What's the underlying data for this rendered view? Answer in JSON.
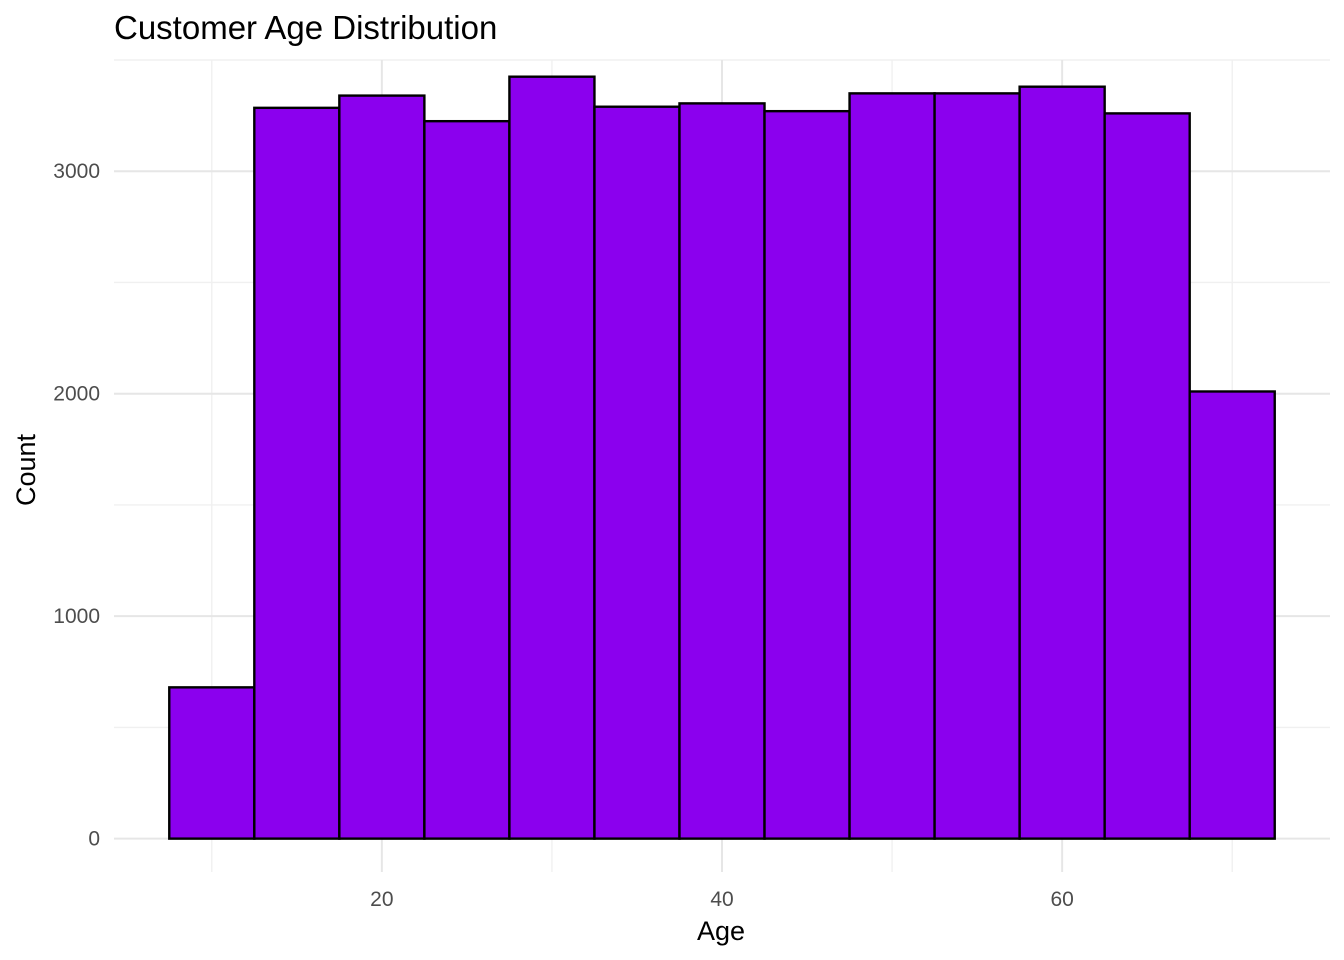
{
  "chart_data": {
    "type": "bar",
    "title": "Customer Age Distribution",
    "xlabel": "Age",
    "ylabel": "Count",
    "bin_width": 5,
    "bins": [
      {
        "x_start": 7.5,
        "x_end": 12.5,
        "count": 680
      },
      {
        "x_start": 12.5,
        "x_end": 17.5,
        "count": 3285
      },
      {
        "x_start": 17.5,
        "x_end": 22.5,
        "count": 3340
      },
      {
        "x_start": 22.5,
        "x_end": 27.5,
        "count": 3225
      },
      {
        "x_start": 27.5,
        "x_end": 32.5,
        "count": 3425
      },
      {
        "x_start": 32.5,
        "x_end": 37.5,
        "count": 3290
      },
      {
        "x_start": 37.5,
        "x_end": 42.5,
        "count": 3305
      },
      {
        "x_start": 42.5,
        "x_end": 47.5,
        "count": 3270
      },
      {
        "x_start": 47.5,
        "x_end": 52.5,
        "count": 3350
      },
      {
        "x_start": 52.5,
        "x_end": 57.5,
        "count": 3350
      },
      {
        "x_start": 57.5,
        "x_end": 62.5,
        "count": 3380
      },
      {
        "x_start": 62.5,
        "x_end": 67.5,
        "count": 3260
      },
      {
        "x_start": 67.5,
        "x_end": 72.5,
        "count": 2010
      }
    ],
    "xlim": [
      4.25,
      75.75
    ],
    "ylim": [
      -150,
      3500
    ],
    "x_ticks": [
      20,
      40,
      60
    ],
    "x_minor_ticks": [
      10,
      30,
      50,
      70
    ],
    "y_ticks": [
      0,
      1000,
      2000,
      3000
    ],
    "y_minor_ticks": [
      500,
      1500,
      2500,
      3500
    ],
    "grid": true,
    "legend": "none",
    "colors": {
      "fill": "#8b00ee",
      "outline": "#000000",
      "grid": "#ebebeb"
    }
  }
}
